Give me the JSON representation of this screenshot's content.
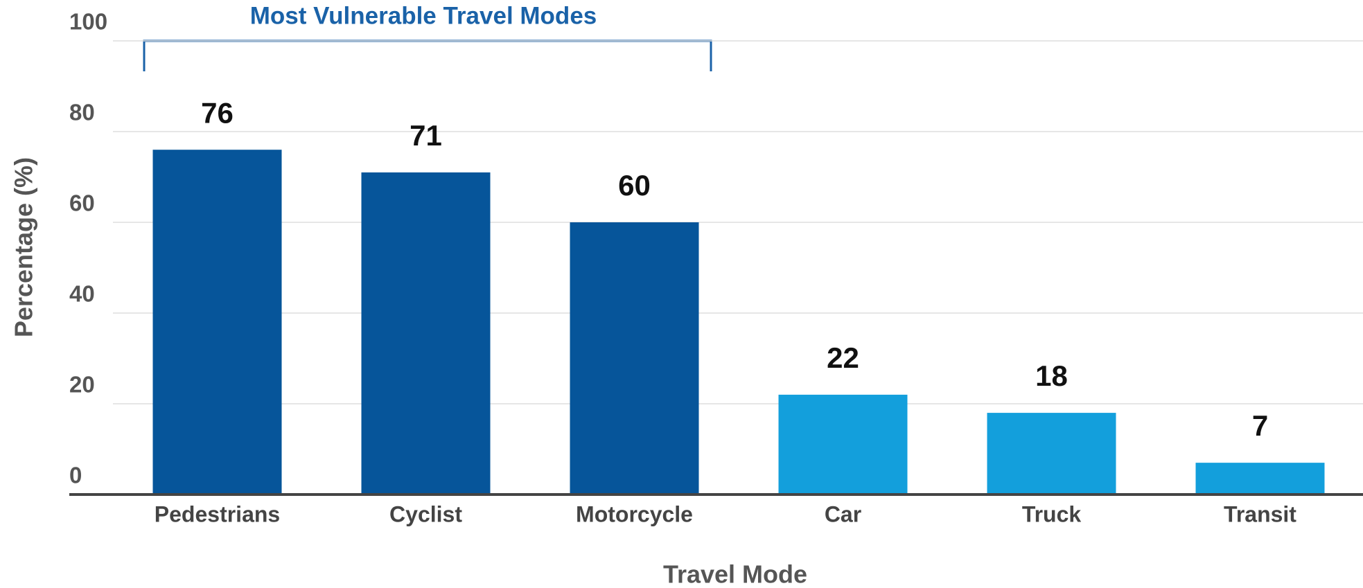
{
  "chart_data": {
    "type": "bar",
    "annotation": "Most Vulnerable Travel Modes",
    "xlabel": "Travel Mode",
    "ylabel": "Percentage (%)",
    "categories": [
      "Pedestrians",
      "Cyclist",
      "Motorcycle",
      "Car",
      "Truck",
      "Transit"
    ],
    "values": [
      76,
      71,
      60,
      22,
      18,
      7
    ],
    "colors": [
      "#06559a",
      "#06559a",
      "#06559a",
      "#139fdc",
      "#139fdc",
      "#139fdc"
    ],
    "ylim": [
      0,
      100
    ],
    "yticks": [
      0,
      20,
      40,
      60,
      80,
      100
    ],
    "grid": true
  }
}
